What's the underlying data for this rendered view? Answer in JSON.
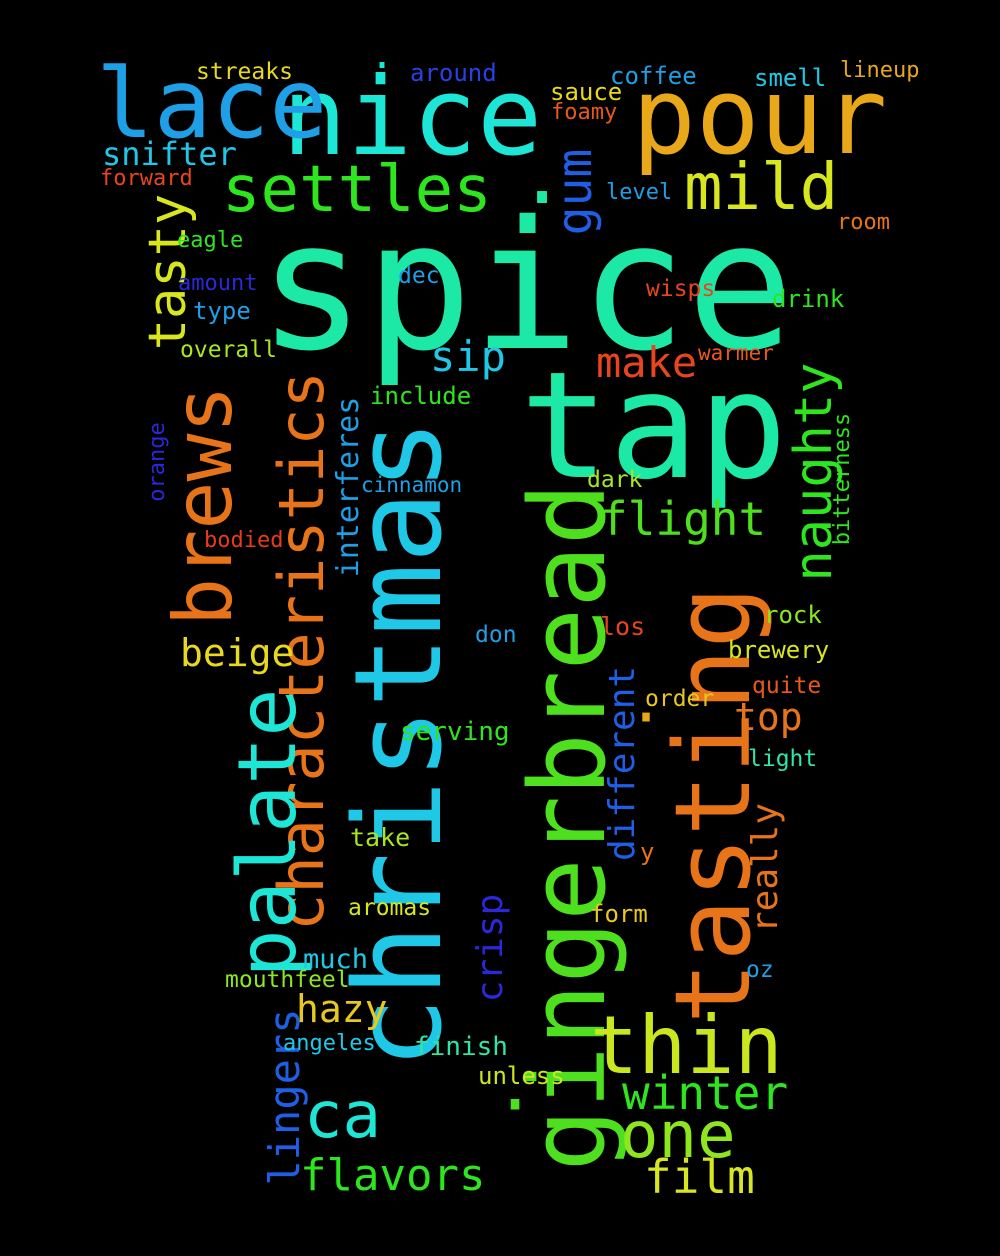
{
  "words": [
    {
      "text": "spice",
      "color": "#1de9a6"
    },
    {
      "text": "christmas",
      "color": "#1ec8e6"
    },
    {
      "text": "gingerbread",
      "color": "#4ee01e"
    },
    {
      "text": "tap",
      "color": "#1de9a6"
    },
    {
      "text": "tasting",
      "color": "#e8741a"
    },
    {
      "text": "nice",
      "color": "#1ee6d6"
    },
    {
      "text": "pour",
      "color": "#e8a81a"
    },
    {
      "text": "lace",
      "color": "#1e9fe6"
    },
    {
      "text": "brews",
      "color": "#e8741a"
    },
    {
      "text": "characteristics",
      "color": "#e8741a"
    },
    {
      "text": "palate",
      "color": "#1ee6d6"
    },
    {
      "text": "thin",
      "color": "#c9e61e"
    },
    {
      "text": "settles",
      "color": "#2ee61e"
    },
    {
      "text": "mild",
      "color": "#d8e61e"
    },
    {
      "text": "one",
      "color": "#8ee61e"
    },
    {
      "text": "ca",
      "color": "#1ee6d6"
    },
    {
      "text": "naughty",
      "color": "#2ee61e"
    },
    {
      "text": "tasty",
      "color": "#d8e61e"
    },
    {
      "text": "flight",
      "color": "#4ee01e"
    },
    {
      "text": "winter",
      "color": "#2ee61e"
    },
    {
      "text": "film",
      "color": "#d8e61e"
    },
    {
      "text": "flavors",
      "color": "#2ee61e"
    },
    {
      "text": "gum",
      "color": "#1e5fe6"
    },
    {
      "text": "make",
      "color": "#e8451e"
    },
    {
      "text": "sip",
      "color": "#1ec8e6"
    },
    {
      "text": "hazy",
      "color": "#e8c81e"
    },
    {
      "text": "lingers",
      "color": "#1e5fe6"
    },
    {
      "text": "beige",
      "color": "#e8d81e"
    },
    {
      "text": "top",
      "color": "#e8741a"
    },
    {
      "text": "snifter",
      "color": "#1ec8e6"
    },
    {
      "text": "interferes",
      "color": "#1e9fe6"
    },
    {
      "text": "crisp",
      "color": "#2a28d8"
    },
    {
      "text": "different",
      "color": "#1e5fe6"
    },
    {
      "text": "really",
      "color": "#e8741a"
    },
    {
      "text": "bitterness",
      "color": "#2ee61e"
    },
    {
      "text": "orange",
      "color": "#2a28d8"
    },
    {
      "text": "streaks",
      "color": "#e8d81e"
    },
    {
      "text": "around",
      "color": "#2a40e6"
    },
    {
      "text": "coffee",
      "color": "#1e9fe6"
    },
    {
      "text": "smell",
      "color": "#1ec8e6"
    },
    {
      "text": "lineup",
      "color": "#e8a81a"
    },
    {
      "text": "sauce",
      "color": "#e8d81e"
    },
    {
      "text": "foamy",
      "color": "#e8581e"
    },
    {
      "text": "forward",
      "color": "#e8451e"
    },
    {
      "text": "level",
      "color": "#1e9fe6"
    },
    {
      "text": "room",
      "color": "#e8741a"
    },
    {
      "text": "eagle",
      "color": "#2ee61e"
    },
    {
      "text": "amount",
      "color": "#2a28d8"
    },
    {
      "text": "type",
      "color": "#1e9fe6"
    },
    {
      "text": "dec",
      "color": "#1e9fe6"
    },
    {
      "text": "wisps",
      "color": "#e8451e"
    },
    {
      "text": "drink",
      "color": "#2ee61e"
    },
    {
      "text": "overall",
      "color": "#a8e61e"
    },
    {
      "text": "warmer",
      "color": "#e8581e"
    },
    {
      "text": "include",
      "color": "#2ee61e"
    },
    {
      "text": "cinnamon",
      "color": "#1e9fe6"
    },
    {
      "text": "dark",
      "color": "#a8e61e"
    },
    {
      "text": "bodied",
      "color": "#e83a1e"
    },
    {
      "text": "rock",
      "color": "#8ee61e"
    },
    {
      "text": "los",
      "color": "#e8451e"
    },
    {
      "text": "don",
      "color": "#1e9fe6"
    },
    {
      "text": "brewery",
      "color": "#d8e61e"
    },
    {
      "text": "quite",
      "color": "#e8581e"
    },
    {
      "text": "order",
      "color": "#e8c81e"
    },
    {
      "text": "serving",
      "color": "#2ee61e"
    },
    {
      "text": "light",
      "color": "#2ee6a6"
    },
    {
      "text": "take",
      "color": "#a8e61e"
    },
    {
      "text": "y",
      "color": "#e8741a"
    },
    {
      "text": "aromas",
      "color": "#d8e61e"
    },
    {
      "text": "form",
      "color": "#e8c81e"
    },
    {
      "text": "much",
      "color": "#1ec8e6"
    },
    {
      "text": "mouthfeel",
      "color": "#8ee61e"
    },
    {
      "text": "oz",
      "color": "#1e9fe6"
    },
    {
      "text": "angeles",
      "color": "#1ec8e6"
    },
    {
      "text": "finish",
      "color": "#2ee6a6"
    },
    {
      "text": "unless",
      "color": "#c9e61e"
    },
    {
      "text": "·",
      "color": "#1ee6d6"
    },
    {
      "text": "·",
      "color": "#1de9a6"
    },
    {
      "text": "·",
      "color": "#e8a81a"
    },
    {
      "text": "·",
      "color": "#4ee01e"
    }
  ]
}
